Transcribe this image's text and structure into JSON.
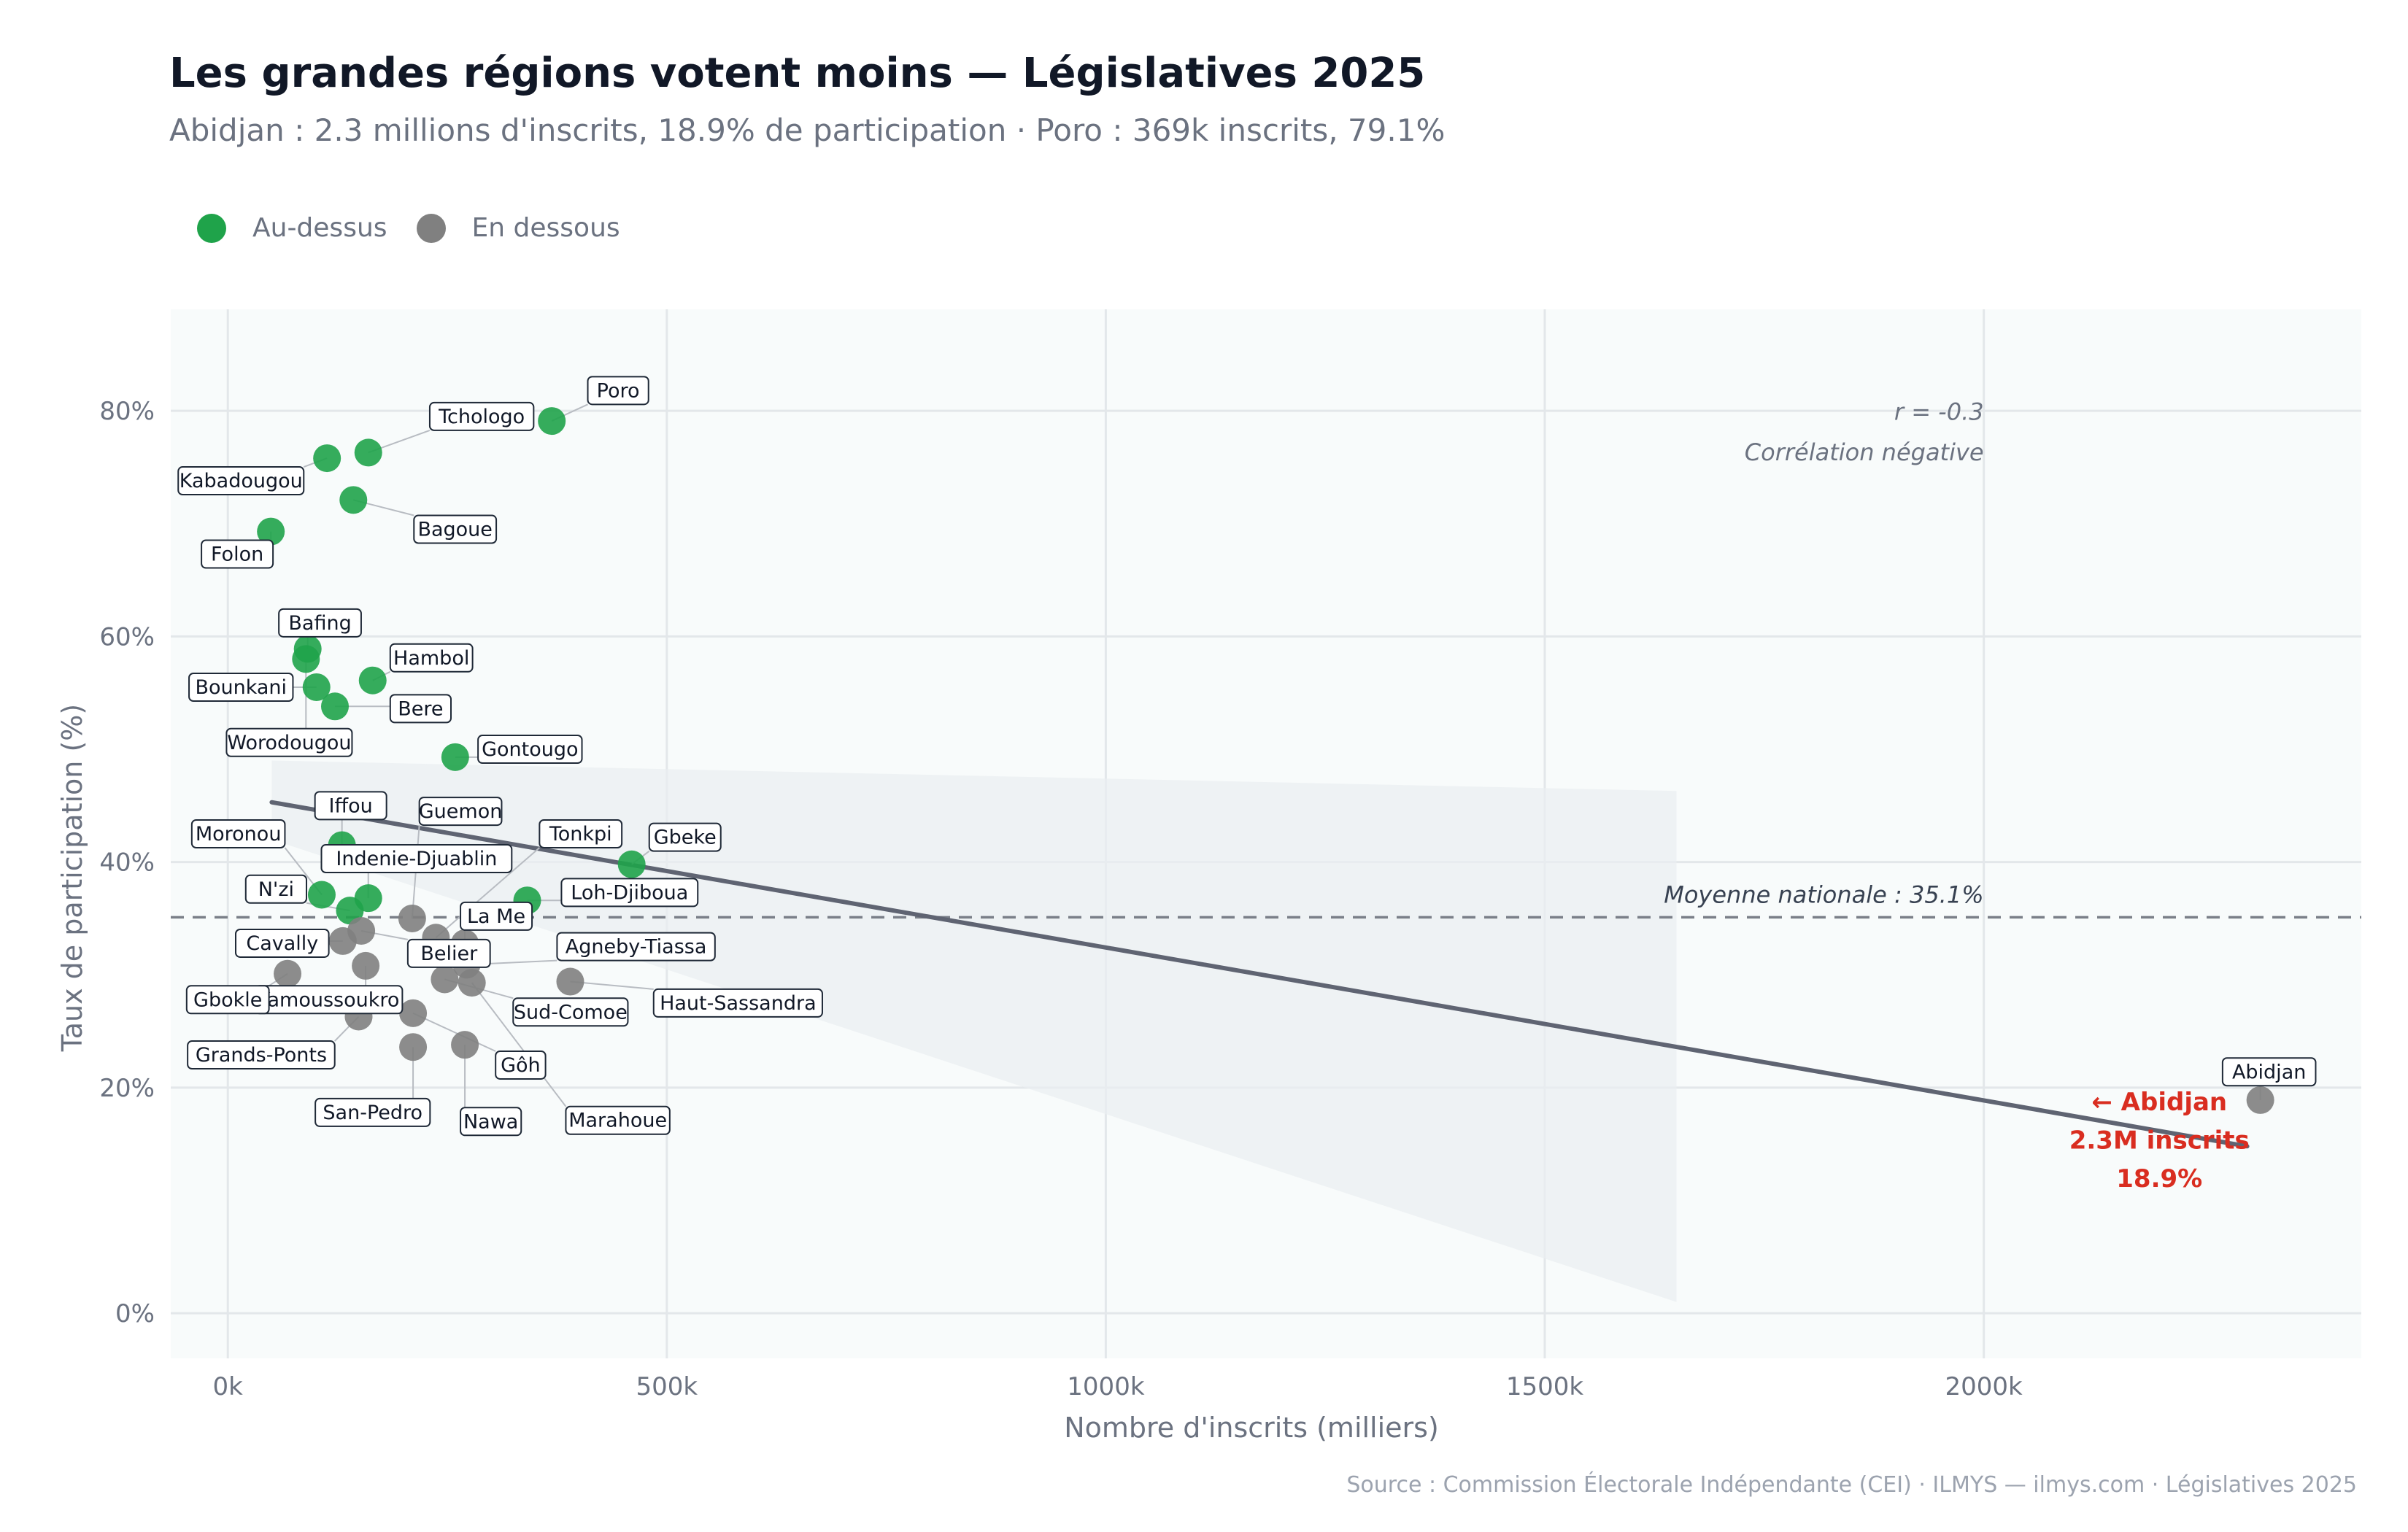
{
  "title": "Les grandes régions votent moins — Législatives 2025",
  "subtitle": "Abidjan : 2.3 millions d'inscrits, 18.9% de participation · Poro : 369k inscrits, 79.1%",
  "legend": [
    {
      "label": "Au-dessus",
      "color": "#1fa34a"
    },
    {
      "label": "En dessous",
      "color": "#808080"
    }
  ],
  "caption": "Source : Commission Électorale Indépendante (CEI)  ·  ILMYS — ilmys.com  ·  Législatives 2025",
  "colors": {
    "above": "#1fa34a",
    "below": "#808080",
    "trend": "#5f6472",
    "mean": "#7a7f88",
    "callout": "#d92d20"
  },
  "chart_data": {
    "type": "scatter",
    "xlabel": "Nombre d'inscrits (milliers)",
    "ylabel": "Taux de participation (%)",
    "xlim": [
      -65,
      2430
    ],
    "ylim": [
      -4,
      89
    ],
    "x_ticks": [
      {
        "v": 0,
        "label": "0k"
      },
      {
        "v": 500,
        "label": "500k"
      },
      {
        "v": 1000,
        "label": "1000k"
      },
      {
        "v": 1500,
        "label": "1500k"
      },
      {
        "v": 2000,
        "label": "2000k"
      }
    ],
    "y_ticks": [
      {
        "v": 0,
        "label": "0%"
      },
      {
        "v": 20,
        "label": "20%"
      },
      {
        "v": 40,
        "label": "40%"
      },
      {
        "v": 60,
        "label": "60%"
      },
      {
        "v": 80,
        "label": "80%"
      }
    ],
    "mean_line": {
      "value": 35.1,
      "label": "Moyenne nationale : 35.1%"
    },
    "correlation": {
      "r_label": "r = -0.3",
      "desc": "Corrélation négative"
    },
    "trend": {
      "x": [
        50,
        2300
      ],
      "y": [
        45.3,
        14.8
      ]
    },
    "confidence_band": {
      "x": [
        50,
        1650
      ],
      "upper": [
        49,
        46.3
      ],
      "lower": [
        42,
        1
      ]
    },
    "callout": {
      "lines": [
        "← Abidjan",
        "2.3M inscrits",
        "18.9%"
      ]
    },
    "points": [
      {
        "name": "Poro",
        "x": 369,
        "y": 79.1,
        "group": "above"
      },
      {
        "name": "Tchologo",
        "x": 160,
        "y": 76.3,
        "group": "above"
      },
      {
        "name": "Kabadougou",
        "x": 113,
        "y": 75.8,
        "group": "above"
      },
      {
        "name": "Bagoue",
        "x": 143,
        "y": 72.1,
        "group": "above"
      },
      {
        "name": "Folon",
        "x": 49,
        "y": 69.3,
        "group": "above"
      },
      {
        "name": "Bafing",
        "x": 91,
        "y": 58.9,
        "group": "above"
      },
      {
        "name": "Worodougou",
        "x": 89,
        "y": 58.0,
        "group": "above"
      },
      {
        "name": "Hambol",
        "x": 165,
        "y": 56.1,
        "group": "above"
      },
      {
        "name": "Bounkani",
        "x": 101,
        "y": 55.5,
        "group": "above"
      },
      {
        "name": "Bere",
        "x": 122,
        "y": 53.8,
        "group": "above"
      },
      {
        "name": "Gontougo",
        "x": 259,
        "y": 49.3,
        "group": "above"
      },
      {
        "name": "Iffou",
        "x": 130,
        "y": 41.5,
        "group": "above"
      },
      {
        "name": "Gbeke",
        "x": 460,
        "y": 39.8,
        "group": "above"
      },
      {
        "name": "Moronou",
        "x": 107,
        "y": 37.1,
        "group": "above"
      },
      {
        "name": "Indenie-Djuablin",
        "x": 160,
        "y": 36.8,
        "group": "above"
      },
      {
        "name": "Loh-Djiboua",
        "x": 341,
        "y": 36.6,
        "group": "above"
      },
      {
        "name": "N'zi",
        "x": 139,
        "y": 35.7,
        "group": "above"
      },
      {
        "name": "Guemon",
        "x": 210,
        "y": 35.0,
        "group": "below"
      },
      {
        "name": "Tonkpi",
        "x": 237,
        "y": 33.3,
        "group": "below"
      },
      {
        "name": "Belier",
        "x": 152,
        "y": 33.9,
        "group": "below"
      },
      {
        "name": "Cavally",
        "x": 131,
        "y": 33.0,
        "group": "below"
      },
      {
        "name": "La Me",
        "x": 270,
        "y": 32.8,
        "group": "below"
      },
      {
        "name": "Agneby-Tiassa",
        "x": 272,
        "y": 30.9,
        "group": "below"
      },
      {
        "name": "Yamoussoukro",
        "x": 157,
        "y": 30.8,
        "group": "below"
      },
      {
        "name": "Gbokle",
        "x": 68,
        "y": 30.1,
        "group": "below"
      },
      {
        "name": "Sud-Comoe",
        "x": 247,
        "y": 29.6,
        "group": "below"
      },
      {
        "name": "Haut-Sassandra",
        "x": 390,
        "y": 29.4,
        "group": "below"
      },
      {
        "name": "Marahoue",
        "x": 278,
        "y": 29.3,
        "group": "below"
      },
      {
        "name": "Grands-Ponts",
        "x": 149,
        "y": 26.3,
        "group": "below"
      },
      {
        "name": "Gôh",
        "x": 211,
        "y": 26.6,
        "group": "below"
      },
      {
        "name": "Nawa",
        "x": 270,
        "y": 23.8,
        "group": "below"
      },
      {
        "name": "San-Pedro",
        "x": 211,
        "y": 23.6,
        "group": "below"
      },
      {
        "name": "Abidjan",
        "x": 2315,
        "y": 18.9,
        "group": "below"
      }
    ],
    "labels": [
      {
        "name": "Poro",
        "lx": 410,
        "ly": 81.8,
        "anchor": "start"
      },
      {
        "name": "Tchologo",
        "lx": 230,
        "ly": 79.5,
        "anchor": "start"
      },
      {
        "name": "Kabadougou",
        "lx": 15,
        "ly": 73.8,
        "anchor": "middle"
      },
      {
        "name": "Bagoue",
        "lx": 212,
        "ly": 69.5,
        "anchor": "start"
      },
      {
        "name": "Folon",
        "lx": -30,
        "ly": 67.3,
        "anchor": "start"
      },
      {
        "name": "Bafing",
        "lx": 105,
        "ly": 61.2,
        "anchor": "middle"
      },
      {
        "name": "Worodougou",
        "lx": 70,
        "ly": 50.6,
        "anchor": "middle"
      },
      {
        "name": "Hambol",
        "lx": 185,
        "ly": 58.1,
        "anchor": "start"
      },
      {
        "name": "Bounkani",
        "lx": 15,
        "ly": 55.5,
        "anchor": "middle"
      },
      {
        "name": "Bere",
        "lx": 185,
        "ly": 53.6,
        "anchor": "start"
      },
      {
        "name": "Gontougo",
        "lx": 285,
        "ly": 50.0,
        "anchor": "start"
      },
      {
        "name": "Iffou",
        "lx": 140,
        "ly": 45.0,
        "anchor": "middle"
      },
      {
        "name": "Gbeke",
        "lx": 480,
        "ly": 42.2,
        "anchor": "start"
      },
      {
        "name": "Moronou",
        "lx": 12,
        "ly": 42.5,
        "anchor": "middle"
      },
      {
        "name": "Indenie-Djuablin",
        "lx": 215,
        "ly": 40.3,
        "anchor": "middle"
      },
      {
        "name": "Loh-Djiboua",
        "lx": 380,
        "ly": 37.3,
        "anchor": "start"
      },
      {
        "name": "N'zi",
        "lx": 55,
        "ly": 37.6,
        "anchor": "middle"
      },
      {
        "name": "Guemon",
        "lx": 265,
        "ly": 44.5,
        "anchor": "middle"
      },
      {
        "name": "Tonkpi",
        "lx": 355,
        "ly": 42.5,
        "anchor": "start"
      },
      {
        "name": "Belier",
        "lx": 205,
        "ly": 31.9,
        "anchor": "start"
      },
      {
        "name": "Cavally",
        "lx": 62,
        "ly": 32.8,
        "anchor": "middle"
      },
      {
        "name": "La Me",
        "lx": 265,
        "ly": 35.2,
        "anchor": "start"
      },
      {
        "name": "Agneby-Tiassa",
        "lx": 375,
        "ly": 32.5,
        "anchor": "start"
      },
      {
        "name": "Yamoussoukro",
        "lx": 115,
        "ly": 27.8,
        "anchor": "middle"
      },
      {
        "name": "Gbokle",
        "lx": 0,
        "ly": 27.8,
        "anchor": "middle"
      },
      {
        "name": "Sud-Comoe",
        "lx": 325,
        "ly": 26.7,
        "anchor": "start"
      },
      {
        "name": "Haut-Sassandra",
        "lx": 485,
        "ly": 27.5,
        "anchor": "start"
      },
      {
        "name": "Marahoue",
        "lx": 385,
        "ly": 17.1,
        "anchor": "start"
      },
      {
        "name": "Grands-Ponts",
        "lx": 38,
        "ly": 22.9,
        "anchor": "middle"
      },
      {
        "name": "Gôh",
        "lx": 305,
        "ly": 22.0,
        "anchor": "start"
      },
      {
        "name": "Nawa",
        "lx": 265,
        "ly": 17.0,
        "anchor": "start"
      },
      {
        "name": "San-Pedro",
        "lx": 165,
        "ly": 17.8,
        "anchor": "middle"
      },
      {
        "name": "Abidjan",
        "lx": 2325,
        "ly": 21.4,
        "anchor": "middle"
      }
    ]
  }
}
